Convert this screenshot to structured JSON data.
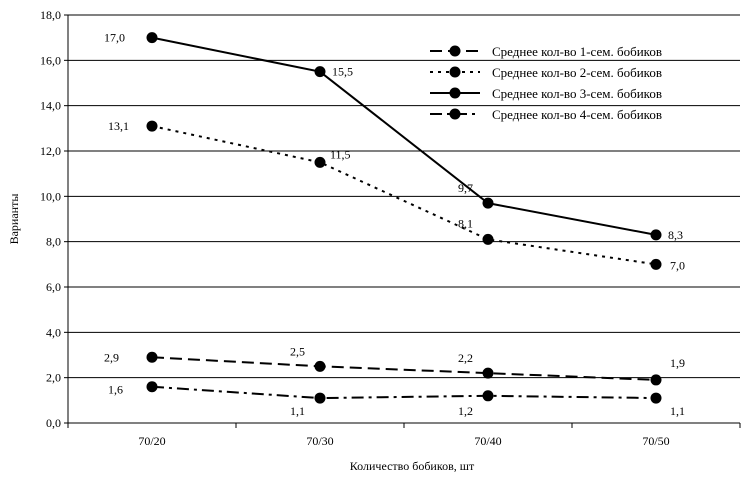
{
  "chart_data": {
    "type": "line",
    "title": "",
    "xlabel": "Количество бобиков, шт",
    "ylabel": "Варианты",
    "categories": [
      "70/20",
      "70/30",
      "70/40",
      "70/50"
    ],
    "ylim": [
      0,
      18
    ],
    "y_ticks": [
      "0,0",
      "2,0",
      "4,0",
      "6,0",
      "8,0",
      "10,0",
      "12,0",
      "14,0",
      "16,0",
      "18,0"
    ],
    "grid": "horizontal",
    "legend_position": "top-right",
    "series": [
      {
        "name": "Среднее кол-во 1-сем. бобиков",
        "values": [
          2.9,
          2.5,
          2.2,
          1.9
        ],
        "labels": [
          "2,9",
          "2,5",
          "2,2",
          "1,9"
        ],
        "dash": "long-dash"
      },
      {
        "name": "Среднее кол-во 2-сем. бобиков",
        "values": [
          13.1,
          11.5,
          8.1,
          7.0
        ],
        "labels": [
          "13,1",
          "11,5",
          "8,1",
          "7,0"
        ],
        "dash": "dotted"
      },
      {
        "name": "Среднее кол-во 3-сем. бобиков",
        "values": [
          17.0,
          15.5,
          9.7,
          8.3
        ],
        "labels": [
          "17,0",
          "15,5",
          "9,7",
          "8,3"
        ],
        "dash": "solid"
      },
      {
        "name": "Среднее кол-во 4-сем. бобиков",
        "values": [
          1.6,
          1.1,
          1.2,
          1.1
        ],
        "labels": [
          "1,6",
          "1,1",
          "1,2",
          "1,1"
        ],
        "dash": "dash-dot"
      }
    ]
  },
  "colors": {
    "line": "#000000",
    "background": "#ffffff"
  }
}
